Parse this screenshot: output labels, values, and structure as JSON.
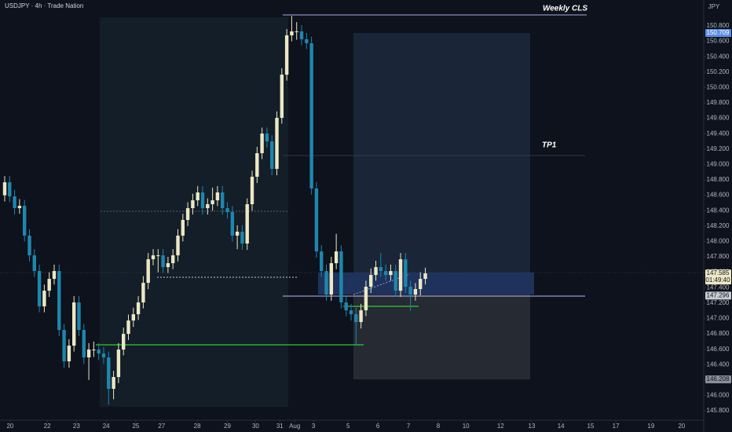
{
  "chart_data": {
    "type": "candlestick",
    "title": "USDJPY · 4h · Trade Nation",
    "currency": "JPY",
    "annotations": [
      "Weekly CLS",
      "TP1"
    ],
    "up_color": "#ece8c4",
    "down_color": "#1f86ad",
    "open": [
      148.6,
      148.769,
      148.586,
      148.433,
      148.463,
      148.076,
      147.82,
      147.616,
      147.157,
      147.361,
      147.514,
      147.616,
      146.851,
      146.443,
      146.647,
      147.208,
      146.851,
      146.494,
      146.596,
      146.596,
      146.545,
      146.494,
      146.086,
      146.239,
      146.596,
      146.8,
      146.973,
      147.055,
      147.208,
      147.463,
      147.769,
      147.82,
      147.82,
      147.667,
      147.718,
      147.82,
      148.076,
      148.28,
      148.433,
      148.535,
      148.637,
      148.433,
      148.484,
      148.535,
      148.637,
      148.433,
      148.382,
      148.076,
      148.127,
      147.973,
      148.484,
      148.841,
      149.147,
      149.402,
      149.3,
      148.943,
      149.606,
      150.167,
      150.678,
      150.729,
      150.729,
      150.627,
      150.576,
      148.688,
      147.871,
      147.616,
      147.31,
      147.718,
      147.871,
      147.208,
      147.106,
      147.055,
      146.953,
      147.106,
      147.412,
      147.565,
      147.667,
      147.616,
      147.565,
      147.616,
      147.361,
      147.769,
      147.412,
      147.31,
      147.382,
      147.514
    ],
    "high": [
      148.85,
      148.85,
      148.67,
      148.55,
      148.54,
      148.16,
      147.9,
      147.7,
      147.44,
      147.6,
      147.7,
      147.7,
      146.93,
      146.73,
      147.29,
      147.29,
      146.93,
      146.68,
      146.7,
      146.68,
      146.63,
      146.57,
      146.32,
      146.68,
      146.88,
      147.05,
      147.14,
      147.29,
      147.55,
      147.85,
      147.9,
      147.9,
      147.9,
      147.8,
      147.9,
      148.16,
      148.36,
      148.51,
      148.62,
      148.72,
      148.72,
      148.56,
      148.7,
      148.72,
      148.72,
      148.51,
      148.46,
      148.21,
      148.21,
      148.56,
      148.92,
      149.23,
      149.48,
      149.48,
      149.38,
      149.69,
      150.25,
      150.76,
      150.93,
      150.85,
      150.81,
      150.71,
      150.66,
      148.77,
      147.95,
      147.7,
      147.8,
      148.1,
      147.95,
      147.29,
      147.19,
      147.14,
      147.19,
      147.49,
      147.65,
      147.75,
      147.85,
      147.7,
      147.7,
      147.7,
      147.85,
      147.85,
      147.49,
      147.46,
      147.6,
      147.66
    ],
    "low": [
      148.52,
      148.51,
      148.35,
      148.36,
      148.0,
      147.74,
      147.54,
      147.08,
      147.08,
      147.28,
      147.44,
      146.77,
      146.36,
      146.36,
      146.57,
      146.77,
      146.41,
      146.2,
      146.5,
      146.46,
      146.41,
      145.88,
      145.95,
      146.16,
      146.52,
      146.72,
      146.89,
      146.98,
      147.13,
      147.38,
      147.69,
      147.6,
      147.59,
      147.59,
      147.64,
      147.74,
      148.0,
      148.2,
      148.35,
      148.46,
      148.35,
      148.35,
      148.4,
      148.46,
      148.35,
      148.3,
      148.0,
      147.9,
      147.89,
      147.89,
      148.4,
      148.76,
      149.07,
      149.22,
      148.86,
      148.86,
      149.53,
      150.09,
      150.6,
      150.62,
      150.55,
      150.5,
      148.61,
      147.79,
      147.54,
      147.23,
      147.23,
      147.64,
      147.13,
      147.03,
      146.97,
      146.65,
      146.87,
      147.03,
      147.33,
      147.49,
      147.54,
      147.49,
      147.49,
      147.28,
      147.28,
      147.33,
      147.1,
      147.23,
      147.3,
      147.44
    ],
    "close": [
      148.769,
      148.586,
      148.433,
      148.463,
      148.076,
      147.82,
      147.616,
      147.157,
      147.361,
      147.514,
      147.616,
      146.851,
      146.443,
      146.647,
      147.208,
      146.851,
      146.494,
      146.596,
      146.596,
      146.545,
      146.494,
      146.086,
      146.239,
      146.596,
      146.8,
      146.973,
      147.055,
      147.208,
      147.463,
      147.769,
      147.82,
      147.82,
      147.667,
      147.718,
      147.82,
      148.076,
      148.28,
      148.433,
      148.535,
      148.637,
      148.433,
      148.484,
      148.535,
      148.637,
      148.433,
      148.382,
      148.076,
      148.127,
      147.973,
      148.484,
      148.841,
      149.147,
      149.402,
      149.3,
      148.943,
      149.606,
      150.167,
      150.678,
      150.729,
      150.729,
      150.627,
      150.576,
      148.688,
      147.871,
      147.616,
      147.31,
      147.718,
      147.871,
      147.208,
      147.106,
      147.055,
      146.953,
      147.106,
      147.412,
      147.565,
      147.667,
      147.616,
      147.565,
      147.616,
      147.361,
      147.769,
      147.412,
      147.31,
      147.382,
      147.514,
      147.586
    ],
    "ylim": [
      145.678,
      151.137
    ],
    "yticks": [
      {
        "value": 145.8,
        "label": "145.800"
      },
      {
        "value": 146.0,
        "label": "146.000"
      },
      {
        "value": 146.2,
        "label": "146.200"
      },
      {
        "value": 146.4,
        "label": "146.400"
      },
      {
        "value": 146.6,
        "label": "146.600"
      },
      {
        "value": 146.8,
        "label": "146.800"
      },
      {
        "value": 147.0,
        "label": "147.000"
      },
      {
        "value": 147.2,
        "label": "147.200"
      },
      {
        "value": 147.4,
        "label": "147.400"
      },
      {
        "value": 147.6,
        "label": "147.600"
      },
      {
        "value": 147.8,
        "label": "147.800"
      },
      {
        "value": 148.0,
        "label": "148.000"
      },
      {
        "value": 148.2,
        "label": "148.200"
      },
      {
        "value": 148.4,
        "label": "148.400"
      },
      {
        "value": 148.6,
        "label": "148.600"
      },
      {
        "value": 148.8,
        "label": "148.800"
      },
      {
        "value": 149.0,
        "label": "149.000"
      },
      {
        "value": 149.2,
        "label": "149.200"
      },
      {
        "value": 149.4,
        "label": "149.400"
      },
      {
        "value": 149.6,
        "label": "149.600"
      },
      {
        "value": 149.8,
        "label": "149.800"
      },
      {
        "value": 150.0,
        "label": "150.000"
      },
      {
        "value": 150.2,
        "label": "150.200"
      },
      {
        "value": 150.4,
        "label": "150.400"
      },
      {
        "value": 150.6,
        "label": "150.600"
      },
      {
        "value": 150.8,
        "label": "150.800"
      }
    ],
    "xlim": [
      -0.95,
      141.1
    ],
    "xticks": [
      {
        "value": 1.1,
        "label": "20"
      },
      {
        "value": 8.6,
        "label": "22"
      },
      {
        "value": 14.5,
        "label": "23"
      },
      {
        "value": 20.5,
        "label": "24"
      },
      {
        "value": 26.5,
        "label": "25"
      },
      {
        "value": 31.7,
        "label": "27"
      },
      {
        "value": 38.9,
        "label": "28"
      },
      {
        "value": 45,
        "label": "29"
      },
      {
        "value": 50.7,
        "label": "30"
      },
      {
        "value": 55.6,
        "label": "31"
      },
      {
        "value": 58.6,
        "label": "Aug"
      },
      {
        "value": 62.4,
        "label": "3"
      },
      {
        "value": 69.4,
        "label": "5"
      },
      {
        "value": 75.4,
        "label": "6"
      },
      {
        "value": 81.6,
        "label": "7"
      },
      {
        "value": 87.6,
        "label": "8"
      },
      {
        "value": 93.2,
        "label": "10"
      },
      {
        "value": 100.2,
        "label": "12"
      },
      {
        "value": 106.5,
        "label": "13"
      },
      {
        "value": 112.4,
        "label": "14"
      },
      {
        "value": 118.4,
        "label": "15"
      },
      {
        "value": 123.5,
        "label": "17"
      },
      {
        "value": 130.6,
        "label": "19"
      },
      {
        "value": 136.8,
        "label": "20"
      }
    ],
    "price_labels": [
      {
        "value": 150.709,
        "label": "150.709"
      },
      {
        "value": 147.585,
        "label": "147.585"
      },
      {
        "value": 147.296,
        "label": "147.296"
      },
      {
        "value": 146.208,
        "label": "146.208"
      }
    ],
    "countdown": "01:49:40"
  }
}
